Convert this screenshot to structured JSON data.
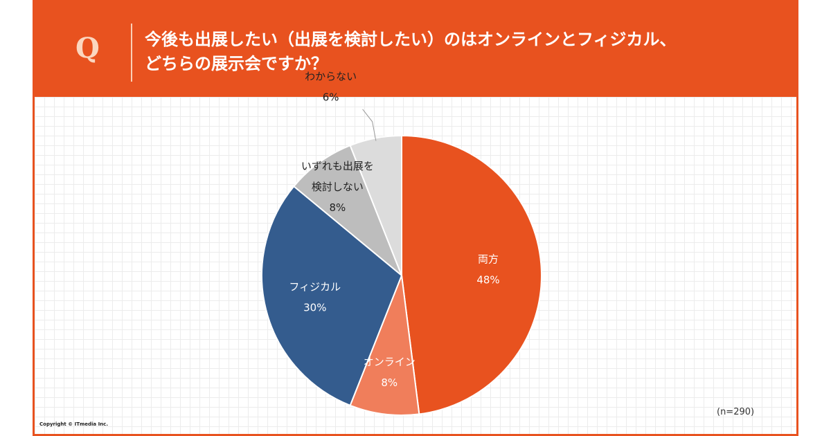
{
  "header": {
    "q_mark": "Q",
    "question_line1": "今後も出展したい（出展を検討したい）のはオンラインとフィジカル、",
    "question_line2": "どちらの展示会ですか？"
  },
  "chart_data": {
    "type": "pie",
    "slices": [
      {
        "label": "両方",
        "value": 48,
        "value_label": "48%",
        "color": "#e8521f",
        "text_color": "#ffffff"
      },
      {
        "label": "オンライン",
        "value": 8,
        "value_label": "8%",
        "color": "#f07e5b",
        "text_color": "#ffffff"
      },
      {
        "label": "フィジカル",
        "value": 30,
        "value_label": "30%",
        "color": "#345c8e",
        "text_color": "#ffffff"
      },
      {
        "label": "いずれも出展を\n検討しない",
        "value": 8,
        "value_label": "8%",
        "color": "#bdbdbd",
        "text_color": "#222222"
      },
      {
        "label": "わからない",
        "value": 6,
        "value_label": "6%",
        "color": "#dcdcdc",
        "text_color": "#222222"
      }
    ],
    "start_angle_deg": 0,
    "direction": "clockwise",
    "note": "(n=290)"
  },
  "footer": {
    "copyright": "Copyright © ITmedia Inc."
  }
}
